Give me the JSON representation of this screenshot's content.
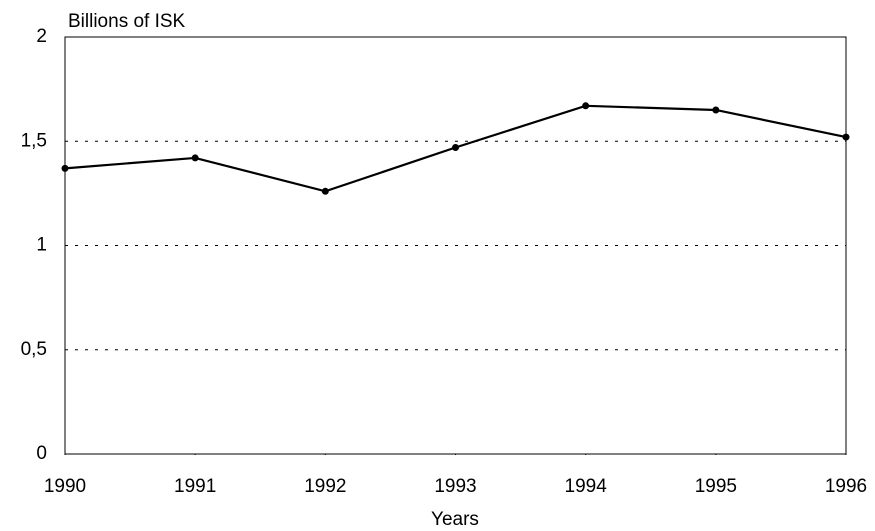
{
  "chart_data": {
    "type": "line",
    "y_label": "Billions of ISK",
    "x_label": "Years",
    "x": [
      1990,
      1991,
      1992,
      1993,
      1994,
      1995,
      1996
    ],
    "series": [
      {
        "color": "#000000",
        "values": [
          1.37,
          1.42,
          1.26,
          1.47,
          1.67,
          1.65,
          1.52
        ]
      }
    ],
    "xlim": [
      1990,
      1996
    ],
    "xticks": [
      1990,
      1991,
      1992,
      1993,
      1994,
      1995,
      1996
    ],
    "ylim": [
      0,
      2
    ],
    "yticks": [
      0,
      {
        "value": 0.5,
        "label": "0,5"
      },
      1,
      {
        "value": 1.5,
        "label": "1,5"
      },
      2
    ],
    "grid": true
  }
}
